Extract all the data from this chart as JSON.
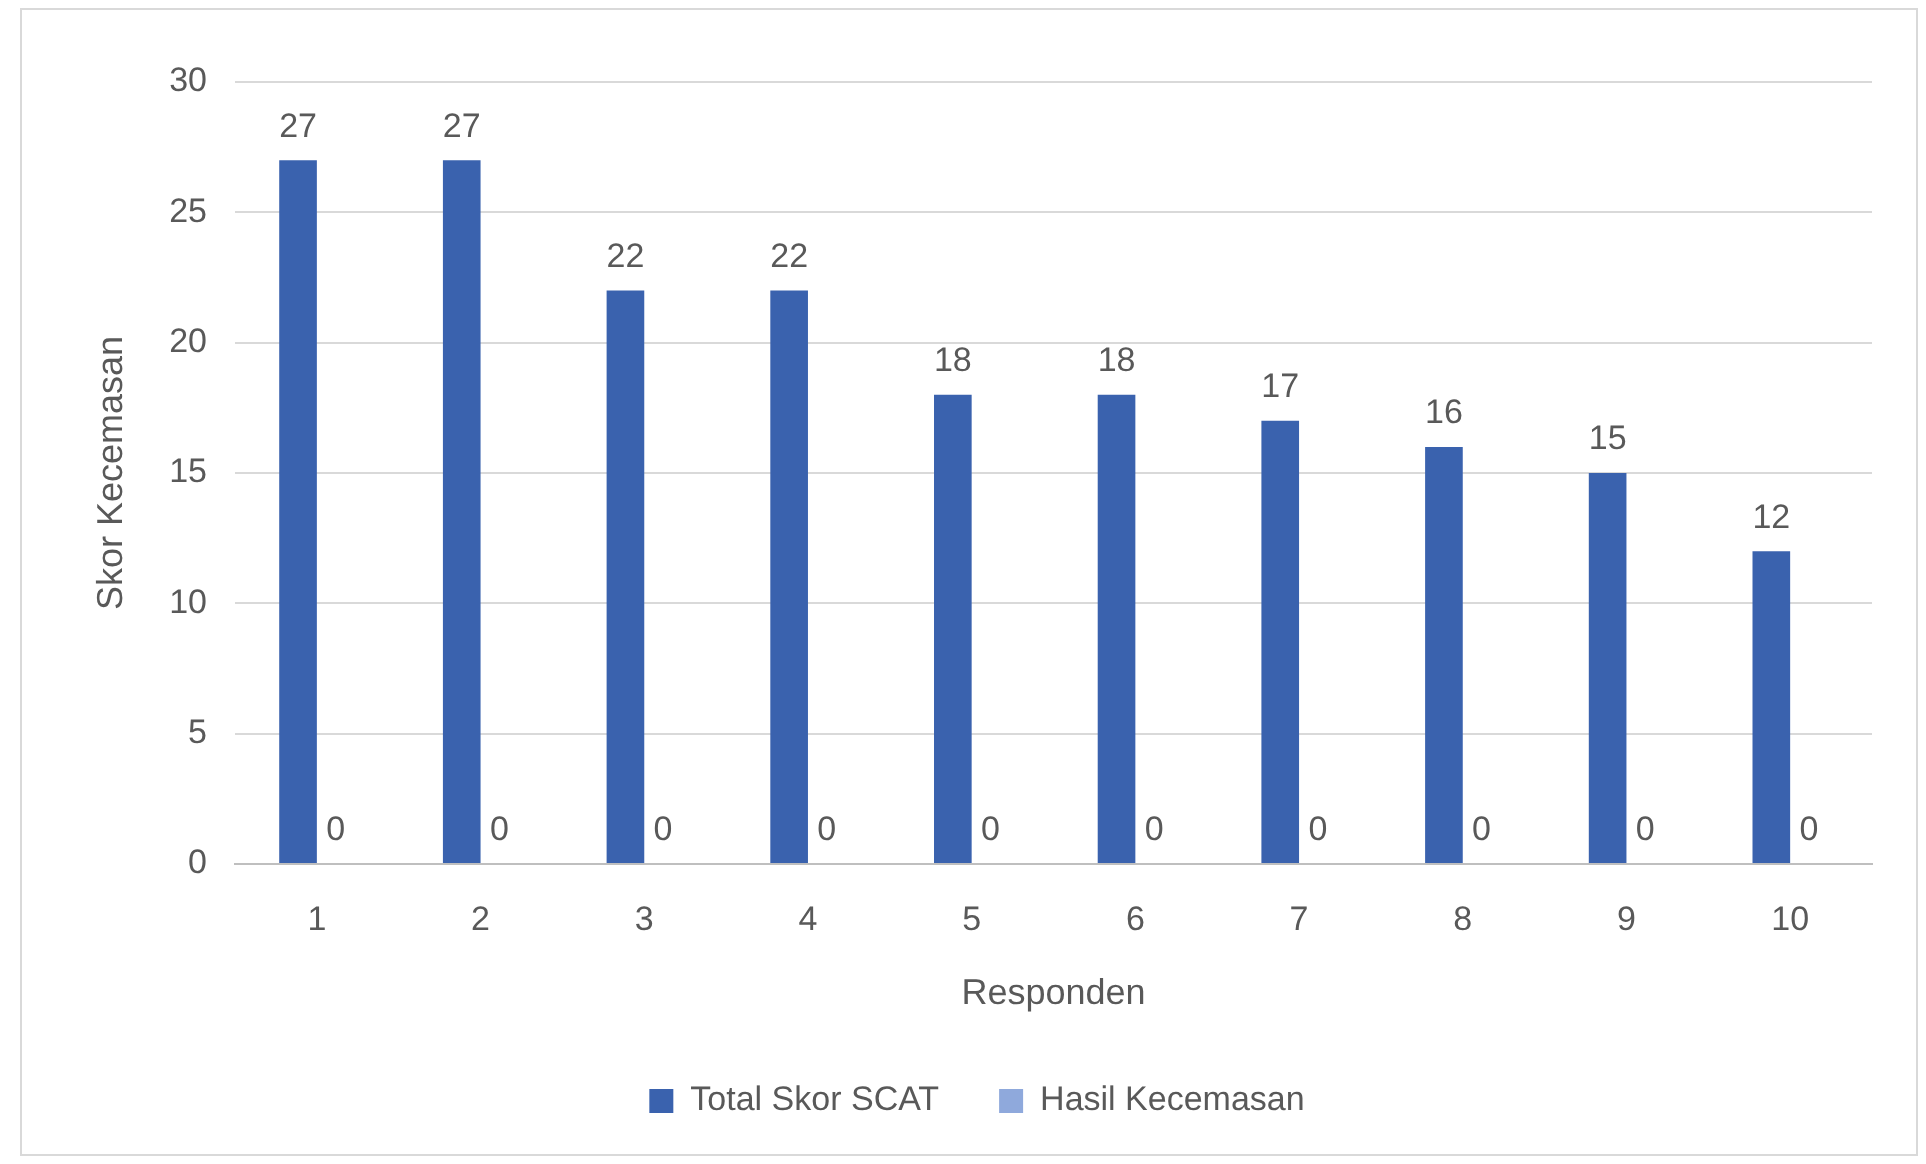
{
  "chart_data": {
    "type": "bar",
    "xlabel": "Responden",
    "ylabel": "Skor Kecemasan",
    "categories": [
      "1",
      "2",
      "3",
      "4",
      "5",
      "6",
      "7",
      "8",
      "9",
      "10"
    ],
    "series": [
      {
        "name": "Total Skor SCAT",
        "color": "#3a62ae",
        "values": [
          27,
          27,
          22,
          22,
          18,
          18,
          17,
          16,
          15,
          12
        ]
      },
      {
        "name": "Hasil Kecemasan",
        "color": "#8fa9dc",
        "values": [
          0,
          0,
          0,
          0,
          0,
          0,
          0,
          0,
          0,
          0
        ]
      }
    ],
    "ylim": [
      0,
      30
    ],
    "yticks": [
      0,
      5,
      10,
      15,
      20,
      25,
      30
    ],
    "grid": "y",
    "legend": "bottom",
    "data_labels": true
  }
}
